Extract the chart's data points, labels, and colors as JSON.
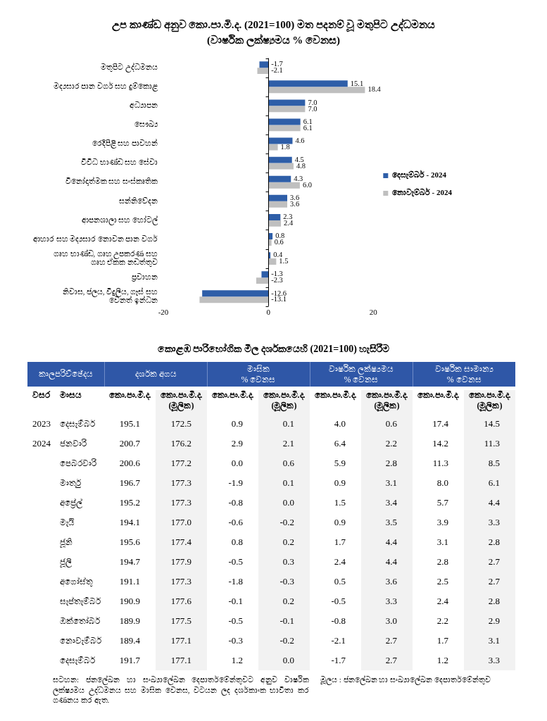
{
  "chart_data": [
    {
      "type": "bar",
      "title": "උප කාණ්ඩ අනුව කො.පා.මි.ද. (2021=100) මත පදනම් වූ මතුපිට උද්ධමනය\n(වාර්ෂික ලක්ෂ්‍යමය % වෙනස)",
      "orientation": "horizontal",
      "categories": [
        "මතුපිට උද්ධමනය",
        "මද්‍යසාර පාන වර්ග සහ දුම්කොළ",
        "අධ්‍යාපන",
        "සෞඛ්‍ය",
        "රෙදිපිළි සහ පාවහන්",
        "විවිධ භාණ්ඩ සහ සේවා",
        "විනෝදාත්මක සහ සංස්කෘතික",
        "සන්නිවේදන",
        "ආපනශාලා සහ හෝටල්",
        "ආහාර සහ මද්‍යසාර නොවන පාන වර්ග",
        "ගෘහ භාණ්ඩ, ගෘහ උපකරණ සහ\nගෘහ ඒකක නඩත්තුව",
        "ප්‍රවාහන",
        "නිවාස, ජලය, විදුලිය, ගෑස් සහ\nවෙනත් ඉන්ධන"
      ],
      "series": [
        {
          "name": "දෙසැම්බර් - 2024",
          "color": "#2e5ea8",
          "values": [
            -1.7,
            15.1,
            7.0,
            6.1,
            4.6,
            4.5,
            4.3,
            3.6,
            2.3,
            0.8,
            0.4,
            -1.3,
            -12.6
          ],
          "value_labels": [
            "-1.7",
            "15.1",
            "7.0",
            "6.1",
            "4.6",
            "4.5",
            "4.3",
            "3.6",
            "2.3",
            "0.8",
            "0.4",
            "-1.3",
            "-12.6"
          ]
        },
        {
          "name": "නොවැම්බර් - 2024",
          "color": "#bfbfbf",
          "values": [
            -2.1,
            18.4,
            7.0,
            6.1,
            1.8,
            4.8,
            6.0,
            3.6,
            2.4,
            0.6,
            1.5,
            -2.3,
            -13.1
          ],
          "value_labels": [
            "-2.1",
            "18.4",
            "7.0",
            "6.1",
            "1.8",
            "4.8",
            "6.0",
            "3.6",
            "2.4",
            "0.6",
            "1.5",
            "-2.3",
            "-13.1"
          ]
        }
      ],
      "xlim": [
        -20,
        20
      ],
      "xticks": [
        -20,
        0,
        20
      ],
      "legend": "right"
    },
    {
      "type": "other",
      "title": "කොළඹ පාරිභෝගික මිල දර්ශකයෙහි (2021=100) හැසිරීම",
      "ylabel": "මාසය",
      "categories": [
        "දෙසැම්බර්",
        "ජනවාරි",
        "පෙබරවාරි",
        "මාර්තු",
        "අප්‍රේල්",
        "මැයි",
        "ජූනි",
        "ජූලි",
        "අගෝස්තු",
        "සැප්තැම්බර්",
        "ඔක්තෝබර්",
        "නොවැම්බර්",
        "දෙසැම්බර්"
      ],
      "series": [
        {
          "name": "වසර",
          "values": [
            2023,
            2024,
            null,
            null,
            null,
            null,
            null,
            null,
            null,
            null,
            null,
            null,
            null
          ],
          "value_labels": [
            "2023",
            "2024",
            null,
            null,
            null,
            null,
            null,
            null,
            null,
            null,
            null,
            null,
            null
          ]
        },
        {
          "name": "කො.පා.මි.ද.",
          "values": [
            195.1,
            200.7,
            200.6,
            196.7,
            195.2,
            194.1,
            195.6,
            194.7,
            191.1,
            190.9,
            189.9,
            189.4,
            191.7
          ],
          "value_labels": [
            "195.1",
            "200.7",
            "200.6",
            "196.7",
            "195.2",
            "194.1",
            "195.6",
            "194.7",
            "191.1",
            "190.9",
            "189.9",
            "189.4",
            "191.7"
          ]
        },
        {
          "name": "කො.පා.මි.ද. (මූලික)",
          "values": [
            172.5,
            176.2,
            177.2,
            177.3,
            177.3,
            177.0,
            177.4,
            177.9,
            177.3,
            177.6,
            177.5,
            177.1,
            177.1
          ],
          "value_labels": [
            "172.5",
            "176.2",
            "177.2",
            "177.3",
            "177.3",
            "177.0",
            "177.4",
            "177.9",
            "177.3",
            "177.6",
            "177.5",
            "177.1",
            "177.1"
          ]
        },
        {
          "name": "කො.පා.මි.ද.",
          "values": [
            0.9,
            2.9,
            0.0,
            -1.9,
            -0.8,
            -0.6,
            0.8,
            -0.5,
            -1.8,
            -0.1,
            -0.5,
            -0.3,
            1.2
          ],
          "value_labels": [
            "0.9",
            "2.9",
            "0.0",
            "-1.9",
            "-0.8",
            "-0.6",
            "0.8",
            "-0.5",
            "-1.8",
            "-0.1",
            "-0.5",
            "-0.3",
            "1.2"
          ]
        },
        {
          "name": "කො.පා.මි.ද. (මූලික)",
          "values": [
            0.1,
            2.1,
            0.6,
            0.1,
            0.0,
            -0.2,
            0.2,
            0.3,
            -0.3,
            0.2,
            -0.1,
            -0.2,
            0.0
          ],
          "value_labels": [
            "0.1",
            "2.1",
            "0.6",
            "0.1",
            "0.0",
            "-0.2",
            "0.2",
            "0.3",
            "-0.3",
            "0.2",
            "-0.1",
            "-0.2",
            "0.0"
          ]
        },
        {
          "name": "කො.පා.මි.ද.",
          "values": [
            4.0,
            6.4,
            5.9,
            0.9,
            1.5,
            0.9,
            1.7,
            2.4,
            0.5,
            -0.5,
            -0.8,
            -2.1,
            -1.7
          ],
          "value_labels": [
            "4.0",
            "6.4",
            "5.9",
            "0.9",
            "1.5",
            "0.9",
            "1.7",
            "2.4",
            "0.5",
            "-0.5",
            "-0.8",
            "-2.1",
            "-1.7"
          ]
        },
        {
          "name": "කො.පා.මි.ද. (මූලික)",
          "values": [
            0.6,
            2.2,
            2.8,
            3.1,
            3.4,
            3.5,
            4.4,
            4.4,
            3.6,
            3.3,
            3.0,
            2.7,
            2.7
          ],
          "value_labels": [
            "0.6",
            "2.2",
            "2.8",
            "3.1",
            "3.4",
            "3.5",
            "4.4",
            "4.4",
            "3.6",
            "3.3",
            "3.0",
            "2.7",
            "2.7"
          ]
        },
        {
          "name": "කො.පා.මි.ද.",
          "values": [
            17.4,
            14.2,
            11.3,
            8.0,
            5.7,
            3.9,
            3.1,
            2.8,
            2.5,
            2.4,
            2.2,
            1.7,
            1.2
          ],
          "value_labels": [
            "17.4",
            "14.2",
            "11.3",
            "8.0",
            "5.7",
            "3.9",
            "3.1",
            "2.8",
            "2.5",
            "2.4",
            "2.2",
            "1.7",
            "1.2"
          ]
        },
        {
          "name": "කො.පා.මි.ද. (මූලික)",
          "values": [
            14.5,
            11.3,
            8.5,
            6.1,
            4.4,
            3.3,
            2.8,
            2.7,
            2.7,
            2.8,
            2.9,
            3.1,
            3.3
          ],
          "value_labels": [
            "14.5",
            "11.3",
            "8.5",
            "6.1",
            "4.4",
            "3.3",
            "2.8",
            "2.7",
            "2.7",
            "2.8",
            "2.9",
            "3.1",
            "3.3"
          ]
        }
      ],
      "annotations": [
        "කාලපරිච්ඡේදය",
        "දර්ශක අගය",
        "මාසික\n% වෙනස",
        "වාර්ෂික ලක්ෂ්‍යමය\n% වෙනස",
        "වාර්ෂික සාමාන්‍ය\n% වෙනස",
        "සටහන: ජනලේඛන හා සංඛ්‍යාලේඛන දෙපාර්තමේන්තුවට අනුව වාර්ෂික ලක්ෂ්‍යමය උද්ධමනය සහ මාසික වෙනස, වටයන ලද දර්ශකාංක භාවිතා කර ගණනය කර ඇත.",
        "මූලය : ජනලේඛන හා සංඛ්‍යාලේඛන දෙපාර්තමේන්තුව"
      ]
    }
  ]
}
